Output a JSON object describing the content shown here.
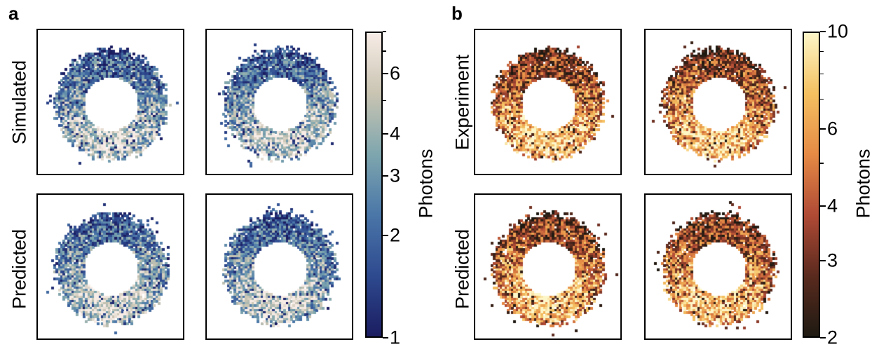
{
  "chart_data": [
    {
      "panel": "a",
      "type": "heatmap",
      "row_labels": [
        "Simulated",
        "Predicted"
      ],
      "colorbar": {
        "label": "Photons",
        "scale": "log",
        "range": [
          1,
          8
        ],
        "colormap": [
          "#1b1c60",
          "#2e4a8f",
          "#4a76a8",
          "#7ea6ae",
          "#c9c4b2",
          "#f7ece6"
        ],
        "tick_labels": [
          "1",
          "2",
          "3",
          "4",
          "6"
        ],
        "tick_values": [
          1,
          2,
          3,
          4,
          6
        ]
      },
      "images": [
        {
          "row": "Simulated",
          "column": 1,
          "shape": "ring"
        },
        {
          "row": "Simulated",
          "column": 2,
          "shape": "ring"
        },
        {
          "row": "Predicted",
          "column": 1,
          "shape": "ring"
        },
        {
          "row": "Predicted",
          "column": 2,
          "shape": "ring"
        }
      ]
    },
    {
      "panel": "b",
      "type": "heatmap",
      "row_labels": [
        "Experiment",
        "Predicted"
      ],
      "colorbar": {
        "label": "Photons",
        "scale": "log",
        "range": [
          2,
          10
        ],
        "colormap": [
          "#1e1a12",
          "#5a2a1e",
          "#b04a35",
          "#e58a45",
          "#f4c060",
          "#fdf6c8"
        ],
        "tick_labels": [
          "2",
          "3",
          "4",
          "6",
          "10"
        ],
        "tick_values": [
          2,
          3,
          4,
          6,
          10
        ]
      },
      "images": [
        {
          "row": "Experiment",
          "column": 1,
          "shape": "ring"
        },
        {
          "row": "Experiment",
          "column": 2,
          "shape": "ring"
        },
        {
          "row": "Predicted",
          "column": 1,
          "shape": "ring"
        },
        {
          "row": "Predicted",
          "column": 2,
          "shape": "ring"
        }
      ]
    }
  ]
}
